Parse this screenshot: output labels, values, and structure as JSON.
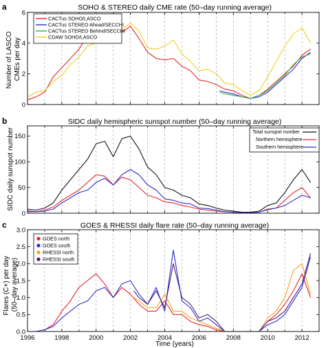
{
  "colors": {
    "red": "#e8222a",
    "blue": "#2b2bd0",
    "black": "#111111",
    "orange": "#f4a21a",
    "yellow": "#f0d020",
    "purple": "#4a1a7a",
    "cyan": "#22c4c4",
    "green": "#30b040",
    "grid": "#999999"
  },
  "x_axis": {
    "label": "Time (years)",
    "min": 1996,
    "max": 2013,
    "ticks": [
      "1996",
      "1998",
      "2000",
      "2002",
      "2004",
      "2006",
      "2008",
      "2010",
      "2012"
    ]
  },
  "chart_data": [
    {
      "panel": "a",
      "type": "line",
      "title": "SOHO & STEREO daily CME rate (50–day running average)",
      "ylabel": "Number of LASCO CMEs per day",
      "ylim": [
        0,
        6
      ],
      "yticks": [
        "0",
        "2",
        "4",
        "6"
      ],
      "grid": "dashed vertical at yearly intervals",
      "legend_position": "top-left",
      "series": [
        {
          "name": "CACTus SOHO/LASCO",
          "color_key": "red",
          "x": [
            1996,
            1996.5,
            1997,
            1997.5,
            1998,
            1998.5,
            1999,
            1999.5,
            2000,
            2000.5,
            2001,
            2001.5,
            2002,
            2002.5,
            2003,
            2003.5,
            2004,
            2004.5,
            2005,
            2005.5,
            2006,
            2006.5,
            2007,
            2007.5,
            2008,
            2008.5,
            2009,
            2009.5,
            2010,
            2010.5,
            2011,
            2011.5,
            2012,
            2012.5
          ],
          "values": [
            0.3,
            0.5,
            0.8,
            1.8,
            2.4,
            3.0,
            3.6,
            4.5,
            4.9,
            5.0,
            4.4,
            4.7,
            5.1,
            4.3,
            3.4,
            3.0,
            2.9,
            3.0,
            2.5,
            2.2,
            1.6,
            1.5,
            1.3,
            1.0,
            0.9,
            0.6,
            0.4,
            0.6,
            1.0,
            1.5,
            2.0,
            2.5,
            3.2,
            3.6
          ]
        },
        {
          "name": "CACTus STEREO Ahead/SECCHI",
          "color_key": "blue",
          "x": [
            2007.2,
            2007.5,
            2008,
            2008.5,
            2009,
            2009.5,
            2010,
            2010.5,
            2011,
            2011.5,
            2012,
            2012.5
          ],
          "values": [
            0.9,
            0.8,
            0.7,
            0.5,
            0.4,
            0.5,
            0.8,
            1.3,
            1.8,
            2.3,
            3.0,
            3.4
          ]
        },
        {
          "name": "CACTus STEREO Behind/SECCHI",
          "color_key": "green",
          "x": [
            2007.2,
            2007.5,
            2008,
            2008.5,
            2009,
            2009.5,
            2010,
            2010.5,
            2011,
            2011.5,
            2012,
            2012.5
          ],
          "values": [
            0.8,
            0.7,
            0.6,
            0.5,
            0.4,
            0.6,
            0.9,
            1.4,
            1.9,
            2.6,
            3.1,
            3.3
          ]
        },
        {
          "name": "CDAW SOHO/LASCO",
          "color_key": "yellow",
          "x": [
            1996,
            1996.5,
            1997,
            1997.5,
            1998,
            1998.5,
            1999,
            1999.5,
            2000,
            2000.5,
            2001,
            2001.5,
            2002,
            2002.5,
            2003,
            2003.5,
            2004,
            2004.5,
            2005,
            2005.5,
            2006,
            2006.5,
            2007,
            2007.5,
            2008,
            2008.5,
            2009,
            2009.5,
            2010,
            2010.5,
            2011,
            2011.5,
            2012,
            2012.5
          ],
          "values": [
            0.5,
            0.8,
            0.9,
            1.5,
            1.9,
            2.6,
            3.1,
            3.8,
            4.0,
            4.5,
            4.0,
            4.9,
            5.3,
            4.8,
            3.7,
            3.6,
            3.8,
            4.2,
            3.3,
            2.8,
            2.2,
            2.3,
            2.0,
            1.4,
            1.3,
            0.9,
            0.6,
            0.9,
            1.8,
            2.8,
            3.8,
            4.6,
            5.0,
            4.0
          ]
        }
      ]
    },
    {
      "panel": "b",
      "type": "line",
      "title": "SIDC daily hemispheric sunspot number (50–day running average)",
      "ylabel": "SIDC daily sunspot number",
      "ylim": [
        0,
        170
      ],
      "yticks": [
        "0",
        "50",
        "100",
        "150"
      ],
      "grid": "dashed vertical at yearly intervals",
      "legend_position": "top-right",
      "series": [
        {
          "name": "Total sunspot number",
          "color_key": "black",
          "x": [
            1996,
            1996.5,
            1997,
            1997.5,
            1998,
            1998.5,
            1999,
            1999.5,
            2000,
            2000.5,
            2001,
            2001.5,
            2002,
            2002.5,
            2003,
            2003.5,
            2004,
            2004.5,
            2005,
            2005.5,
            2006,
            2006.5,
            2007,
            2007.5,
            2008,
            2008.5,
            2009,
            2009.5,
            2010,
            2010.5,
            2011,
            2011.5,
            2012,
            2012.5
          ],
          "values": [
            8,
            6,
            10,
            20,
            45,
            65,
            85,
            105,
            135,
            140,
            110,
            145,
            150,
            125,
            90,
            75,
            50,
            45,
            35,
            30,
            18,
            15,
            10,
            6,
            4,
            2,
            2,
            4,
            15,
            20,
            40,
            65,
            85,
            60
          ]
        },
        {
          "name": "Northern hemisphere",
          "color_key": "red",
          "x": [
            1996,
            1996.5,
            1997,
            1997.5,
            1998,
            1998.5,
            1999,
            1999.5,
            2000,
            2000.5,
            2001,
            2001.5,
            2002,
            2002.5,
            2003,
            2003.5,
            2004,
            2004.5,
            2005,
            2005.5,
            2006,
            2006.5,
            2007,
            2007.5,
            2008,
            2008.5,
            2009,
            2009.5,
            2010,
            2010.5,
            2011,
            2011.5,
            2012,
            2012.5
          ],
          "values": [
            5,
            3,
            6,
            12,
            25,
            35,
            45,
            60,
            75,
            72,
            55,
            70,
            65,
            50,
            35,
            30,
            22,
            20,
            15,
            12,
            8,
            6,
            4,
            3,
            2,
            1,
            1,
            2,
            8,
            10,
            25,
            40,
            50,
            30
          ]
        },
        {
          "name": "Southern hemisphere",
          "color_key": "blue",
          "x": [
            1996,
            1996.5,
            1997,
            1997.5,
            1998,
            1998.5,
            1999,
            1999.5,
            2000,
            2000.5,
            2001,
            2001.5,
            2002,
            2002.5,
            2003,
            2003.5,
            2004,
            2004.5,
            2005,
            2005.5,
            2006,
            2006.5,
            2007,
            2007.5,
            2008,
            2008.5,
            2009,
            2009.5,
            2010,
            2010.5,
            2011,
            2011.5,
            2012,
            2012.5
          ],
          "values": [
            3,
            3,
            4,
            8,
            20,
            30,
            40,
            45,
            60,
            68,
            55,
            75,
            85,
            75,
            55,
            45,
            28,
            25,
            20,
            18,
            10,
            9,
            6,
            3,
            2,
            1,
            1,
            2,
            7,
            10,
            15,
            25,
            35,
            30
          ]
        }
      ]
    },
    {
      "panel": "c",
      "type": "line",
      "title": "GOES & RHESSI daily flare rate (50–day running average)",
      "ylabel": "Flares (C+) per day (50–day average)",
      "ylim": [
        0,
        3.0
      ],
      "yticks": [
        "0.0",
        "0.5",
        "1.0",
        "1.5",
        "2.0",
        "2.5",
        "3.0"
      ],
      "grid": "dashed vertical at yearly intervals",
      "legend_position": "top-left",
      "series": [
        {
          "name": "GOES north",
          "color_key": "red",
          "x": [
            1996,
            1996.5,
            1997,
            1997.5,
            1998,
            1998.5,
            1999,
            1999.5,
            2000,
            2000.5,
            2001,
            2001.5,
            2002,
            2002.5,
            2003,
            2003.5,
            2004,
            2004.5,
            2005,
            2005.5,
            2006,
            2006.5,
            2007,
            2007.5,
            2008,
            2008.5,
            2009,
            2009.5,
            2010,
            2010.5,
            2011,
            2011.5,
            2012,
            2012.5
          ],
          "values": [
            0.0,
            0.0,
            0.05,
            0.2,
            0.6,
            0.9,
            1.3,
            1.5,
            1.7,
            1.4,
            1.0,
            1.3,
            1.1,
            0.8,
            0.6,
            0.6,
            0.9,
            0.5,
            0.5,
            0.3,
            0.2,
            0.15,
            0.05,
            0.0,
            0.0,
            0.0,
            0.0,
            0.0,
            0.3,
            0.5,
            0.8,
            1.2,
            1.7,
            1.0
          ]
        },
        {
          "name": "GOES south",
          "color_key": "blue",
          "x": [
            1996,
            1996.5,
            1997,
            1997.5,
            1998,
            1998.5,
            1999,
            1999.5,
            2000,
            2000.5,
            2001,
            2001.5,
            2002,
            2002.5,
            2003,
            2003.5,
            2004,
            2004.5,
            2005,
            2005.5,
            2006,
            2006.5,
            2007,
            2007.5,
            2008,
            2008.5,
            2009,
            2009.5,
            2010,
            2010.5,
            2011,
            2011.5,
            2012,
            2012.5
          ],
          "values": [
            0.0,
            0.0,
            0.05,
            0.15,
            0.4,
            0.6,
            0.8,
            0.9,
            1.2,
            1.3,
            1.0,
            1.4,
            1.5,
            1.1,
            0.8,
            1.3,
            0.6,
            2.4,
            0.9,
            0.7,
            0.3,
            0.4,
            0.2,
            0.0,
            0.0,
            0.0,
            0.0,
            0.0,
            0.2,
            0.3,
            0.5,
            0.9,
            1.3,
            2.2
          ]
        },
        {
          "name": "RHESSI north",
          "color_key": "orange",
          "x": [
            2002.2,
            2002.5,
            2003,
            2003.5,
            2004,
            2004.5,
            2005,
            2005.5,
            2006,
            2006.5,
            2007,
            2007.5,
            2008,
            2008.5,
            2009,
            2009.5,
            2010,
            2010.5,
            2011,
            2011.5,
            2012,
            2012.5
          ],
          "values": [
            1.0,
            0.9,
            0.7,
            0.7,
            1.1,
            0.6,
            0.6,
            0.4,
            0.3,
            0.2,
            0.1,
            0.0,
            0.0,
            0.0,
            0.0,
            0.0,
            0.4,
            0.6,
            1.0,
            1.8,
            2.0,
            1.1
          ]
        },
        {
          "name": "RHESSI south",
          "color_key": "purple",
          "x": [
            2002.2,
            2002.5,
            2003,
            2003.5,
            2004,
            2004.5,
            2005,
            2005.5,
            2006,
            2006.5,
            2007,
            2007.5,
            2008,
            2008.5,
            2009,
            2009.5,
            2010,
            2010.5,
            2011,
            2011.5,
            2012,
            2012.5
          ],
          "values": [
            1.2,
            1.0,
            0.8,
            1.2,
            0.7,
            2.0,
            1.0,
            0.8,
            0.4,
            0.5,
            0.3,
            0.0,
            0.0,
            0.0,
            0.0,
            0.0,
            0.3,
            0.4,
            0.6,
            1.0,
            1.4,
            2.3
          ]
        }
      ]
    }
  ]
}
